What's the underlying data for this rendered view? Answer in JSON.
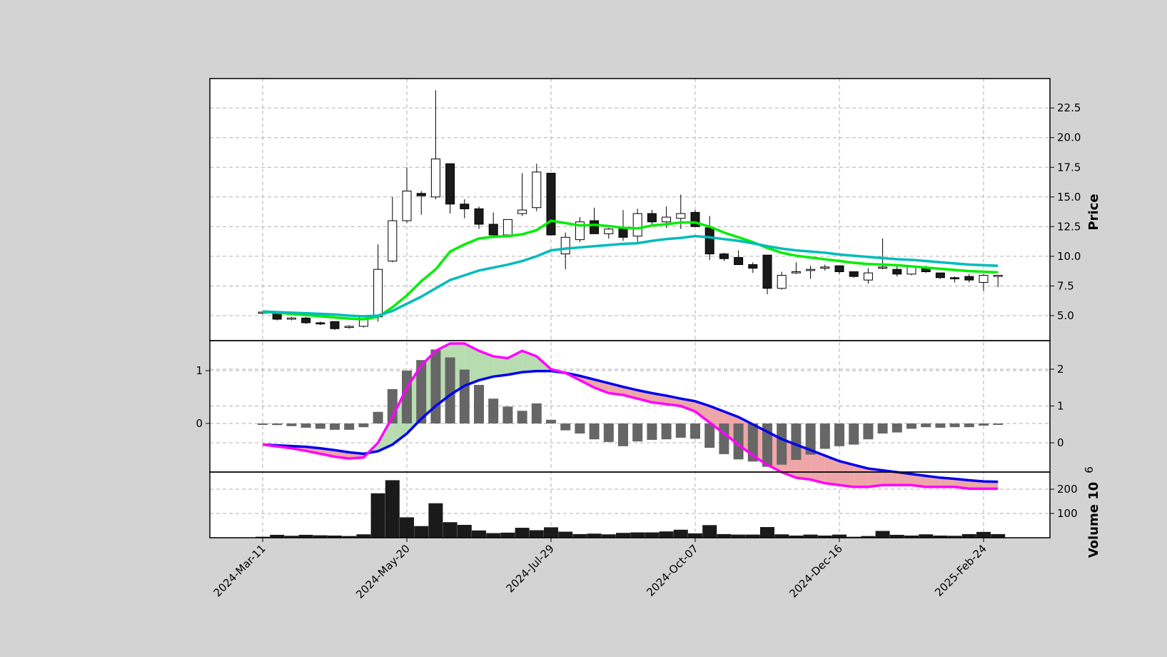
{
  "chart_data": {
    "type": "candlestick",
    "dates": [
      "2024-03-11",
      "2024-03-18",
      "2024-03-25",
      "2024-04-01",
      "2024-04-08",
      "2024-04-15",
      "2024-04-22",
      "2024-04-29",
      "2024-05-06",
      "2024-05-13",
      "2024-05-20",
      "2024-05-27",
      "2024-06-03",
      "2024-06-10",
      "2024-06-17",
      "2024-06-24",
      "2024-07-01",
      "2024-07-08",
      "2024-07-15",
      "2024-07-22",
      "2024-07-29",
      "2024-08-05",
      "2024-08-12",
      "2024-08-19",
      "2024-08-26",
      "2024-09-02",
      "2024-09-09",
      "2024-09-16",
      "2024-09-23",
      "2024-09-30",
      "2024-10-07",
      "2024-10-14",
      "2024-10-21",
      "2024-10-28",
      "2024-11-04",
      "2024-11-11",
      "2024-11-18",
      "2024-11-25",
      "2024-12-02",
      "2024-12-09",
      "2024-12-16",
      "2024-12-23",
      "2024-12-30",
      "2025-01-06",
      "2025-01-13",
      "2025-01-20",
      "2025-01-27",
      "2025-02-03",
      "2025-02-10",
      "2025-02-17",
      "2025-02-24",
      "2025-03-03"
    ],
    "x_tick_labels": [
      "2024-Mar-11",
      "2024-May-20",
      "2024-Jul-29",
      "2024-Oct-07",
      "2024-Dec-16",
      "2025-Feb-24"
    ],
    "ohlc": [
      [
        5.2,
        5.3,
        5.1,
        5.3
      ],
      [
        5.2,
        5.2,
        4.6,
        4.7
      ],
      [
        4.7,
        4.9,
        4.6,
        4.8
      ],
      [
        4.8,
        4.9,
        4.3,
        4.4
      ],
      [
        4.4,
        4.5,
        4.2,
        4.3
      ],
      [
        4.5,
        4.5,
        3.8,
        3.9
      ],
      [
        4.0,
        4.2,
        3.9,
        4.1
      ],
      [
        4.1,
        5.0,
        4.0,
        4.9
      ],
      [
        4.9,
        11.0,
        4.5,
        8.9
      ],
      [
        9.6,
        15.0,
        9.5,
        13.0
      ],
      [
        13.0,
        17.5,
        12.8,
        15.5
      ],
      [
        15.3,
        15.5,
        13.5,
        15.1
      ],
      [
        15.0,
        24.0,
        14.8,
        18.2
      ],
      [
        17.8,
        17.8,
        13.6,
        14.4
      ],
      [
        14.4,
        14.8,
        13.2,
        14.0
      ],
      [
        14.0,
        14.2,
        12.3,
        12.7
      ],
      [
        12.7,
        13.7,
        11.8,
        11.8
      ],
      [
        11.8,
        13.1,
        11.8,
        13.1
      ],
      [
        13.6,
        17.0,
        13.4,
        13.9
      ],
      [
        14.1,
        17.8,
        13.8,
        17.1
      ],
      [
        17.0,
        17.0,
        11.8,
        11.8
      ],
      [
        10.2,
        12.0,
        8.9,
        11.6
      ],
      [
        11.4,
        13.3,
        11.2,
        12.9
      ],
      [
        13.0,
        14.1,
        12.0,
        11.9
      ],
      [
        11.9,
        12.4,
        11.5,
        12.3
      ],
      [
        12.3,
        13.9,
        11.3,
        11.6
      ],
      [
        11.7,
        14.0,
        11.2,
        13.6
      ],
      [
        13.6,
        13.9,
        12.6,
        12.9
      ],
      [
        12.9,
        14.2,
        12.4,
        13.3
      ],
      [
        13.2,
        15.2,
        12.3,
        13.6
      ],
      [
        13.7,
        13.9,
        12.5,
        12.5
      ],
      [
        12.4,
        13.4,
        9.7,
        10.2
      ],
      [
        10.2,
        10.3,
        9.6,
        9.8
      ],
      [
        9.9,
        10.5,
        9.3,
        9.3
      ],
      [
        9.3,
        9.5,
        8.6,
        9.0
      ],
      [
        10.1,
        10.1,
        6.8,
        7.3
      ],
      [
        7.3,
        8.7,
        7.2,
        8.4
      ],
      [
        8.6,
        9.5,
        8.5,
        8.7
      ],
      [
        8.8,
        9.2,
        8.1,
        8.9
      ],
      [
        9.0,
        9.3,
        8.8,
        9.1
      ],
      [
        9.2,
        9.2,
        8.5,
        8.7
      ],
      [
        8.7,
        8.7,
        8.2,
        8.3
      ],
      [
        8.0,
        9.0,
        7.7,
        8.6
      ],
      [
        9.0,
        11.5,
        8.9,
        9.1
      ],
      [
        8.9,
        9.2,
        8.3,
        8.5
      ],
      [
        8.5,
        9.1,
        8.4,
        9.1
      ],
      [
        9.0,
        9.2,
        8.6,
        8.7
      ],
      [
        8.6,
        8.6,
        8.1,
        8.2
      ],
      [
        8.2,
        8.3,
        7.8,
        8.1
      ],
      [
        8.3,
        8.5,
        7.8,
        8.0
      ],
      [
        7.8,
        8.5,
        7.1,
        8.4
      ],
      [
        8.3,
        8.4,
        7.4,
        8.4
      ]
    ],
    "moving_averages": [
      {
        "color": "#00ee00",
        "values": [
          5.3,
          5.25,
          5.15,
          5.05,
          4.95,
          4.85,
          4.75,
          4.7,
          4.9,
          5.7,
          6.7,
          7.9,
          8.9,
          10.4,
          11.0,
          11.5,
          11.65,
          11.7,
          11.85,
          12.2,
          13.0,
          12.8,
          12.6,
          12.65,
          12.55,
          12.4,
          12.35,
          12.6,
          12.7,
          12.85,
          12.85,
          12.5,
          12.0,
          11.6,
          11.2,
          10.7,
          10.3,
          10.05,
          9.9,
          9.75,
          9.6,
          9.45,
          9.35,
          9.3,
          9.25,
          9.15,
          9.05,
          8.95,
          8.85,
          8.75,
          8.7,
          8.65
        ]
      },
      {
        "color": "#00bbbb",
        "values": [
          5.35,
          5.3,
          5.25,
          5.2,
          5.15,
          5.1,
          5.0,
          4.95,
          5.0,
          5.4,
          6.0,
          6.6,
          7.3,
          8.0,
          8.4,
          8.8,
          9.05,
          9.3,
          9.6,
          10.0,
          10.5,
          10.65,
          10.75,
          10.85,
          10.95,
          11.05,
          11.1,
          11.3,
          11.45,
          11.55,
          11.7,
          11.6,
          11.45,
          11.3,
          11.1,
          10.85,
          10.65,
          10.5,
          10.4,
          10.3,
          10.15,
          10.05,
          9.95,
          9.85,
          9.75,
          9.7,
          9.6,
          9.5,
          9.4,
          9.3,
          9.25,
          9.2
        ]
      }
    ],
    "macd": {
      "macd_line": [
        -0.05,
        -0.1,
        -0.15,
        -0.22,
        -0.3,
        -0.38,
        -0.43,
        -0.4,
        0.0,
        0.7,
        1.5,
        2.1,
        2.5,
        2.7,
        2.7,
        2.5,
        2.35,
        2.3,
        2.5,
        2.35,
        2.0,
        1.9,
        1.7,
        1.5,
        1.35,
        1.3,
        1.2,
        1.1,
        1.05,
        1.0,
        0.85,
        0.55,
        0.25,
        -0.05,
        -0.35,
        -0.6,
        -0.8,
        -0.95,
        -1.0,
        -1.1,
        -1.15,
        -1.2,
        -1.2,
        -1.15,
        -1.15,
        -1.15,
        -1.2,
        -1.2,
        -1.2,
        -1.25,
        -1.25,
        -1.25
      ],
      "signal_line": [
        -0.05,
        -0.07,
        -0.09,
        -0.11,
        -0.15,
        -0.2,
        -0.26,
        -0.3,
        -0.23,
        -0.05,
        0.25,
        0.65,
        1.0,
        1.3,
        1.55,
        1.7,
        1.8,
        1.85,
        1.92,
        1.95,
        1.95,
        1.9,
        1.82,
        1.72,
        1.62,
        1.52,
        1.43,
        1.35,
        1.28,
        1.2,
        1.13,
        1.0,
        0.85,
        0.7,
        0.5,
        0.3,
        0.1,
        -0.05,
        -0.2,
        -0.35,
        -0.5,
        -0.6,
        -0.7,
        -0.75,
        -0.8,
        -0.85,
        -0.9,
        -0.95,
        -0.98,
        -1.02,
        -1.05,
        -1.06
      ],
      "histogram": [
        0.0,
        -0.03,
        -0.05,
        -0.08,
        -0.1,
        -0.12,
        -0.12,
        -0.07,
        0.22,
        0.65,
        1.0,
        1.2,
        1.4,
        1.25,
        1.02,
        0.73,
        0.47,
        0.32,
        0.24,
        0.38,
        0.07,
        -0.13,
        -0.19,
        -0.3,
        -0.35,
        -0.43,
        -0.34,
        -0.31,
        -0.3,
        -0.27,
        -0.29,
        -0.46,
        -0.58,
        -0.68,
        -0.72,
        -0.82,
        -0.78,
        -0.69,
        -0.59,
        -0.48,
        -0.43,
        -0.4,
        -0.3,
        -0.19,
        -0.17,
        -0.1,
        -0.07,
        -0.08,
        -0.07,
        -0.07,
        -0.04,
        -0.02
      ],
      "left_ticks": [
        "1",
        "0"
      ],
      "right_ticks": [
        "2",
        "1",
        "0"
      ]
    },
    "volume": [
      4,
      12,
      8,
      12,
      10,
      9,
      7,
      14,
      183,
      237,
      84,
      48,
      142,
      64,
      53,
      30,
      19,
      21,
      41,
      31,
      43,
      25,
      15,
      17,
      14,
      20,
      22,
      22,
      26,
      33,
      18,
      52,
      15,
      13,
      13,
      44,
      14,
      9,
      13,
      9,
      13,
      4,
      7,
      28,
      12,
      9,
      14,
      9,
      8,
      15,
      24,
      15
    ],
    "price_ticks": [
      "5.0",
      "7.5",
      "10.0",
      "12.5",
      "15.0",
      "17.5",
      "20.0",
      "22.5"
    ],
    "volume_ticks": [
      "100",
      "200"
    ],
    "volume_exponent": "6",
    "ylabel_price": "Price",
    "ylabel_volume": "Volume  10"
  }
}
